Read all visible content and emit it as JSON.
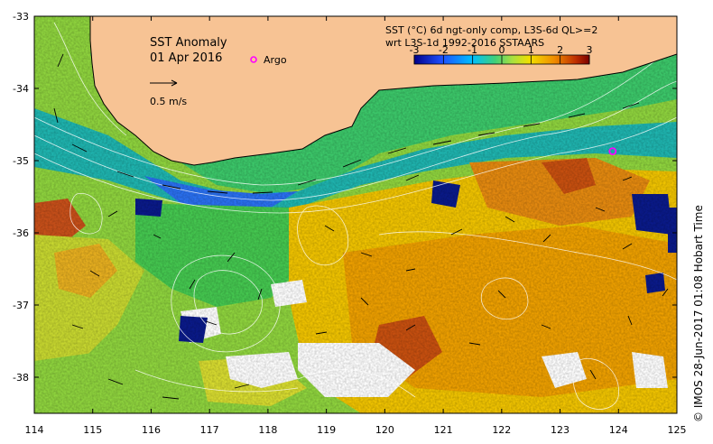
{
  "title": "SST Anomaly",
  "date": "01 Apr 2016",
  "legend": {
    "argo_label": "Argo",
    "velocity_scale_label": "0.5 m/s",
    "description_line1": "SST (°C) 6d ngt-only comp, L3S-6d QL>=2",
    "description_line2": "wrt L3S-1d 1992-2016 SSTAARS",
    "colorbar_ticks": [
      "-3",
      "-2",
      "-1",
      "0",
      "1",
      "2",
      "3"
    ],
    "colorbar_min": -3,
    "colorbar_max": 3
  },
  "axes": {
    "x_ticks": [
      "114",
      "115",
      "116",
      "117",
      "118",
      "119",
      "120",
      "121",
      "122",
      "123",
      "124",
      "125"
    ],
    "y_ticks": [
      "-33",
      "-34",
      "-35",
      "-36",
      "-37",
      "-38"
    ],
    "lon_range": [
      114,
      125
    ],
    "lat_range": [
      -38.5,
      -33
    ]
  },
  "argo_floats": [
    {
      "lon": 123.9,
      "lat": -34.87
    }
  ],
  "credit": "© IMOS 28-Jun-2017 01:08 Hobart Time",
  "colors": {
    "land": "#f7c394",
    "argo": "#ff00ff",
    "missing": "#ffffff"
  }
}
